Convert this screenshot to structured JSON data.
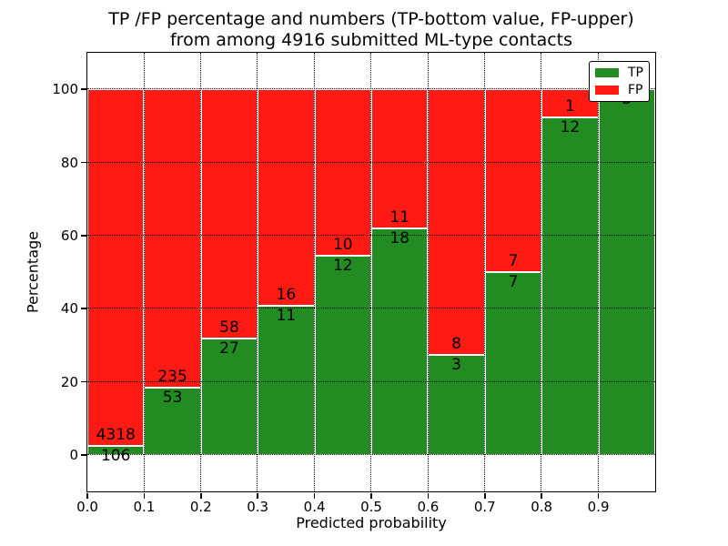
{
  "chart_data": {
    "type": "bar",
    "stacked": true,
    "title": "TP /FP percentage and numbers (TP-bottom value, FP-upper) from among 4916 submitted ML-type contacts",
    "title_lines": [
      "TP /FP percentage and numbers (TP-bottom value, FP-upper)",
      "from among 4916 submitted ML-type contacts"
    ],
    "xlabel": "Predicted probability",
    "ylabel": "Percentage",
    "total_contacts": 4916,
    "xlim": [
      0.0,
      1.0
    ],
    "ylim": [
      -10,
      110
    ],
    "bar_width": 0.1,
    "grid": true,
    "legend_position": "upper right",
    "x_tick_labels": [
      "0.0",
      "0.1",
      "0.2",
      "0.3",
      "0.4",
      "0.5",
      "0.6",
      "0.7",
      "0.8",
      "0.9"
    ],
    "y_tick_values": [
      0,
      20,
      40,
      60,
      80,
      100
    ],
    "bin_starts": [
      0.0,
      0.1,
      0.2,
      0.3,
      0.4,
      0.5,
      0.6,
      0.7,
      0.8,
      0.9
    ],
    "series": [
      {
        "name": "TP",
        "color": "#228b22",
        "values": [
          106,
          53,
          27,
          11,
          12,
          18,
          3,
          7,
          12,
          3
        ]
      },
      {
        "name": "FP",
        "color": "#ff1a14",
        "values": [
          4318,
          235,
          58,
          16,
          10,
          11,
          8,
          7,
          1,
          0
        ]
      }
    ],
    "tp_percent": [
      2.4,
      18.4,
      31.8,
      40.7,
      54.5,
      62.1,
      27.3,
      50.0,
      92.3,
      100.0
    ]
  }
}
